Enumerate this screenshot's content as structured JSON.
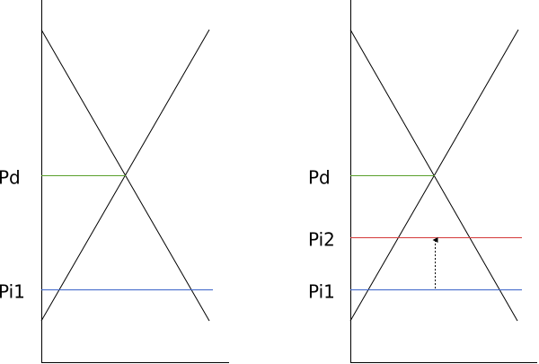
{
  "left_panel": {
    "labels": [
      "Pd",
      "Pi1"
    ]
  },
  "right_panel": {
    "labels": [
      "Pd",
      "Pi2",
      "Pi1"
    ]
  }
}
